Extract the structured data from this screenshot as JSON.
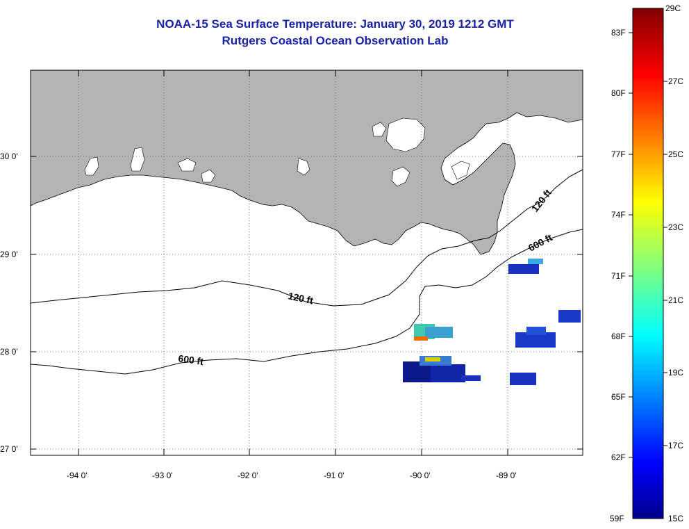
{
  "header": {
    "title_line1": "NOAA-15 Sea Surface Temperature:  January 30, 2019 1212 GMT",
    "title_line2": "Rutgers Coastal Ocean Observation Lab"
  },
  "map": {
    "lon_labels": [
      "-94 0'",
      "-93 0'",
      "-92 0'",
      "-91 0'",
      "-90 0'",
      "-89 0'"
    ],
    "lat_labels": [
      "30 0'",
      "29 0'",
      "28 0'",
      "27 0'"
    ],
    "contour_labels": [
      "120 ft",
      "600 ft",
      "120 ft",
      "600 ft"
    ],
    "colors": {
      "land": "#b4b4b4",
      "water": "#ffffff",
      "lake": "#ffffff"
    }
  },
  "colorbar": {
    "f_labels": [
      "83F",
      "80F",
      "77F",
      "74F",
      "71F",
      "68F",
      "65F",
      "62F",
      "59F"
    ],
    "c_labels": [
      "29C",
      "27C",
      "25C",
      "23C",
      "21C",
      "19C",
      "17C",
      "15C"
    ],
    "min_c": 15,
    "max_c": 29
  }
}
